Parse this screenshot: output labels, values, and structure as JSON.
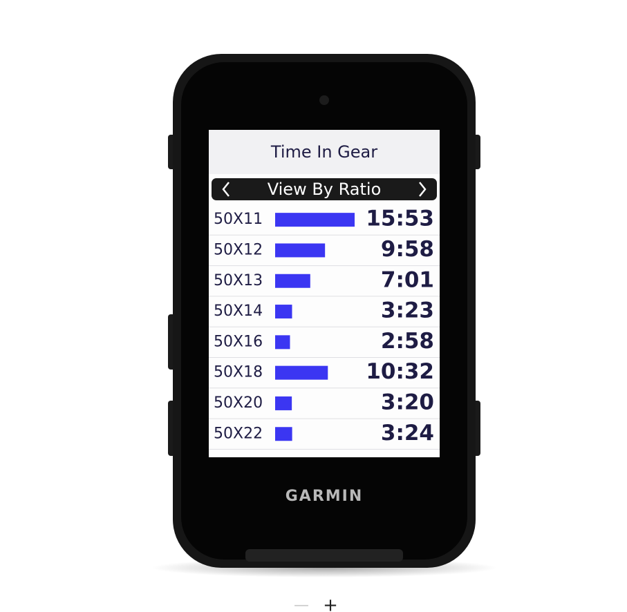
{
  "chart_data": {
    "type": "bar",
    "orientation": "horizontal",
    "title": "Time In Gear",
    "view_selector": "View By Ratio",
    "categories": [
      "50X11",
      "50X12",
      "50X13",
      "50X14",
      "50X16",
      "50X18",
      "50X20",
      "50X22"
    ],
    "values": [
      953,
      598,
      421,
      203,
      178,
      632,
      200,
      204
    ],
    "value_labels": [
      "15:53",
      "9:58",
      "7:01",
      "3:23",
      "2:58",
      "10:32",
      "3:20",
      "3:24"
    ],
    "color": "#3b36f2"
  },
  "device": {
    "brand": "GARMIN"
  },
  "zoom_controls": [
    "—",
    "+"
  ]
}
